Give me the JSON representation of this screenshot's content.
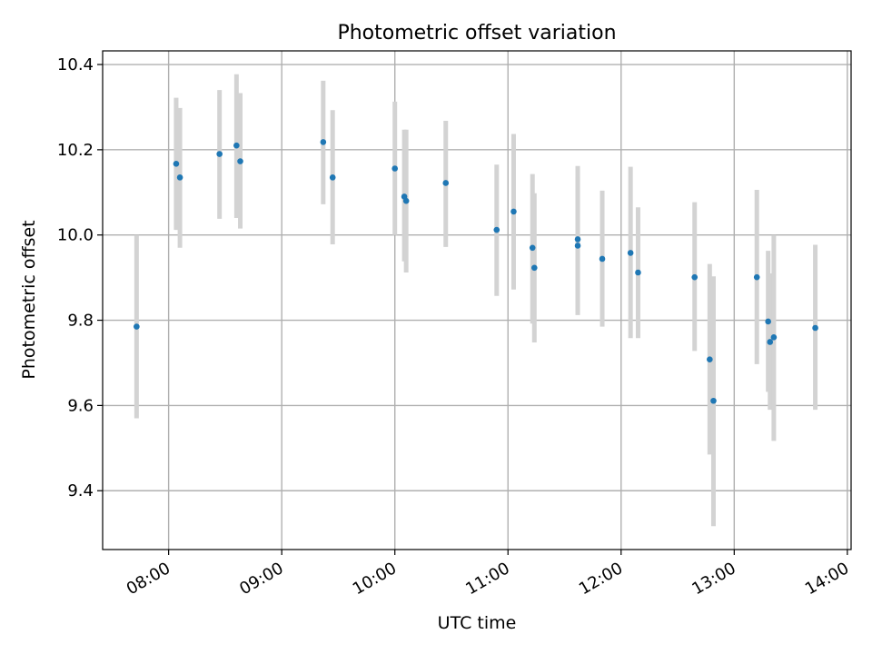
{
  "chart_data": {
    "type": "scatter",
    "title": "Photometric offset variation",
    "xlabel": "UTC time",
    "ylabel": "Photometric offset",
    "x_axis_type": "time",
    "xlim": [
      "07:25",
      "14:02"
    ],
    "ylim": [
      9.262,
      10.432
    ],
    "grid": true,
    "x_ticks": [
      "08:00",
      "09:00",
      "10:00",
      "11:00",
      "12:00",
      "13:00",
      "14:00"
    ],
    "y_ticks": [
      "9.4",
      "9.6",
      "9.8",
      "10.0",
      "10.2",
      "10.4"
    ],
    "colors": {
      "point": "#1f77b4",
      "errorbar": "#d3d3d3",
      "grid": "#b0b0b0"
    },
    "points": [
      {
        "x": "07:43",
        "y": 9.785,
        "err_low": 9.57,
        "err_high": 10.0
      },
      {
        "x": "08:04",
        "y": 10.167,
        "err_low": 10.012,
        "err_high": 10.322
      },
      {
        "x": "08:06",
        "y": 10.135,
        "err_low": 9.97,
        "err_high": 10.298
      },
      {
        "x": "08:27",
        "y": 10.19,
        "err_low": 10.038,
        "err_high": 10.34
      },
      {
        "x": "08:36",
        "y": 10.21,
        "err_low": 10.04,
        "err_high": 10.377
      },
      {
        "x": "08:38",
        "y": 10.173,
        "err_low": 10.015,
        "err_high": 10.333
      },
      {
        "x": "09:22",
        "y": 10.218,
        "err_low": 10.072,
        "err_high": 10.362
      },
      {
        "x": "09:27",
        "y": 10.135,
        "err_low": 9.978,
        "err_high": 10.293
      },
      {
        "x": "10:00",
        "y": 10.156,
        "err_low": 10.0,
        "err_high": 10.313
      },
      {
        "x": "10:05",
        "y": 10.09,
        "err_low": 9.938,
        "err_high": 10.247
      },
      {
        "x": "10:06",
        "y": 10.08,
        "err_low": 9.912,
        "err_high": 10.247
      },
      {
        "x": "10:27",
        "y": 10.122,
        "err_low": 9.972,
        "err_high": 10.268
      },
      {
        "x": "10:54",
        "y": 10.012,
        "err_low": 9.857,
        "err_high": 10.165
      },
      {
        "x": "11:03",
        "y": 10.055,
        "err_low": 9.872,
        "err_high": 10.237
      },
      {
        "x": "11:13",
        "y": 9.97,
        "err_low": 9.792,
        "err_high": 10.143
      },
      {
        "x": "11:14",
        "y": 9.923,
        "err_low": 9.748,
        "err_high": 10.098
      },
      {
        "x": "11:37",
        "y": 9.99,
        "err_low": 9.818,
        "err_high": 10.162
      },
      {
        "x": "11:37",
        "y": 9.975,
        "err_low": 9.812,
        "err_high": 10.137
      },
      {
        "x": "11:50",
        "y": 9.944,
        "err_low": 9.785,
        "err_high": 10.104
      },
      {
        "x": "12:05",
        "y": 9.958,
        "err_low": 9.758,
        "err_high": 10.16
      },
      {
        "x": "12:09",
        "y": 9.912,
        "err_low": 9.758,
        "err_high": 10.065
      },
      {
        "x": "12:39",
        "y": 9.901,
        "err_low": 9.728,
        "err_high": 10.077
      },
      {
        "x": "12:47",
        "y": 9.708,
        "err_low": 9.485,
        "err_high": 9.932
      },
      {
        "x": "12:49",
        "y": 9.611,
        "err_low": 9.317,
        "err_high": 9.903
      },
      {
        "x": "13:12",
        "y": 9.901,
        "err_low": 9.697,
        "err_high": 10.106
      },
      {
        "x": "13:18",
        "y": 9.797,
        "err_low": 9.632,
        "err_high": 9.963
      },
      {
        "x": "13:19",
        "y": 9.749,
        "err_low": 9.59,
        "err_high": 9.91
      },
      {
        "x": "13:21",
        "y": 9.76,
        "err_low": 9.517,
        "err_high": 10.0
      },
      {
        "x": "13:43",
        "y": 9.782,
        "err_low": 9.59,
        "err_high": 9.977
      }
    ]
  }
}
